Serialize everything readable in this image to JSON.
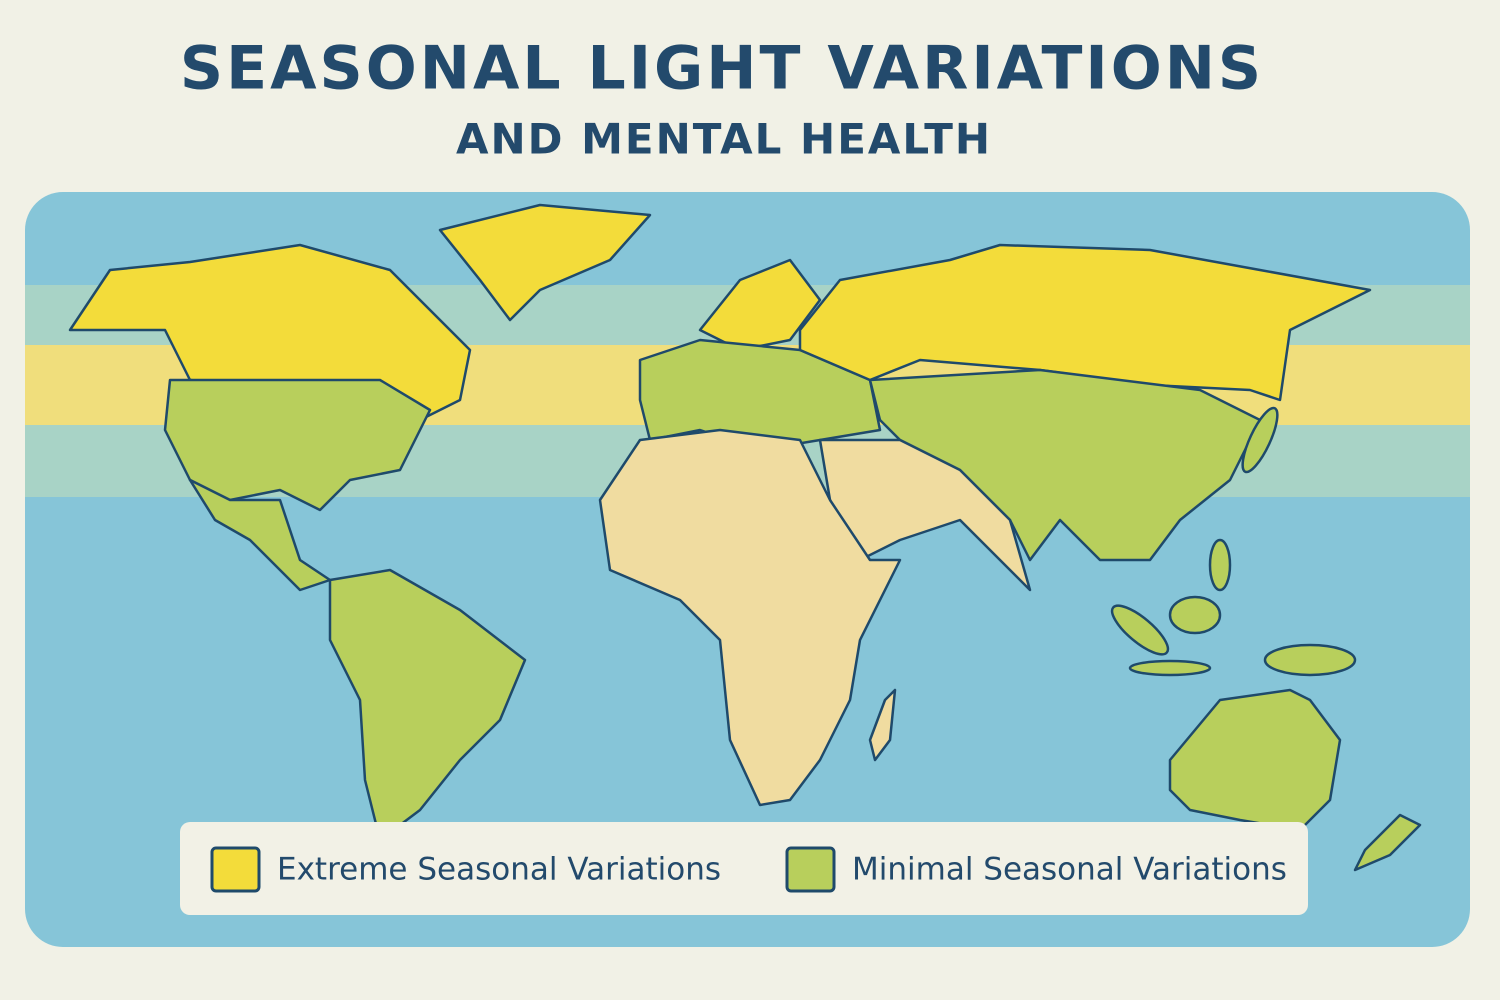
{
  "header": {
    "title": "SEASONAL LIGHT VARIATIONS",
    "subtitle": "AND MENTAL HEALTH"
  },
  "legend": {
    "items": [
      {
        "label": "Extreme Seasonal Variations",
        "color": "#f3dc3a"
      },
      {
        "label": "Minimal Seasonal Variations",
        "color": "#b8cf5c"
      }
    ]
  }
}
